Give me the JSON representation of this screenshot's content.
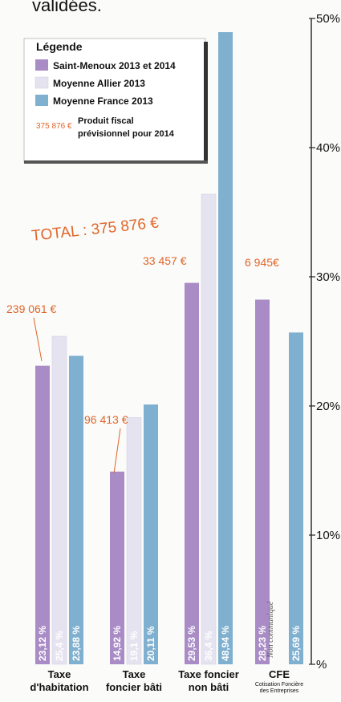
{
  "caption": "validées.",
  "colors": {
    "saint_menoux": "#a98cc6",
    "allier": "#e6e3f0",
    "france": "#7fb0cf",
    "accent": "#e0662a"
  },
  "legend": {
    "title": "Légende",
    "items": [
      {
        "label": "Saint-Menoux 2013 et 2014",
        "color_key": "saint_menoux"
      },
      {
        "label": "Moyenne Allier 2013",
        "color_key": "allier"
      },
      {
        "label": "Moyenne France 2013",
        "color_key": "france"
      }
    ],
    "note_amount": "375 876 €",
    "note_line1": "Produit fiscal",
    "note_line2": "prévisionnel pour 2014"
  },
  "total_label": "TOTAL : 375 876 €",
  "no_value_note": "Non communiqué",
  "chart_data": {
    "type": "bar",
    "categories": [
      {
        "line1": "Taxe",
        "line2": "d'habitation"
      },
      {
        "line1": "Taxe",
        "line2": "foncier bâti"
      },
      {
        "line1": "Taxe foncier",
        "line2": "non bâti"
      },
      {
        "line1": "CFE",
        "line2": "Cotisation Foncière",
        "line3": "des Entreprises"
      }
    ],
    "series": [
      {
        "name": "Saint-Menoux 2013 et 2014",
        "values": [
          23.12,
          14.92,
          29.53,
          28.23
        ],
        "labels": [
          "23,12 %",
          "14,92 %",
          "29,53 %",
          "28,23 %"
        ]
      },
      {
        "name": "Moyenne Allier 2013",
        "values": [
          25.4,
          19.1,
          36.4,
          null
        ],
        "labels": [
          "25,4 %",
          "19,1 %",
          "36,4 %",
          ""
        ]
      },
      {
        "name": "Moyenne France 2013",
        "values": [
          23.88,
          20.11,
          48.94,
          25.69
        ],
        "labels": [
          "23,88 %",
          "20,11 %",
          "48,94 %",
          "25,69 %"
        ]
      }
    ],
    "amounts": [
      "239 061 €",
      "96 413 €",
      "33 457 €",
      "6 945€"
    ],
    "y_ticks": [
      "%",
      "10%",
      "20%",
      "30%",
      "40%",
      "50%"
    ],
    "ylim": [
      0,
      50
    ],
    "legend_position": "top-left",
    "grid": false
  }
}
